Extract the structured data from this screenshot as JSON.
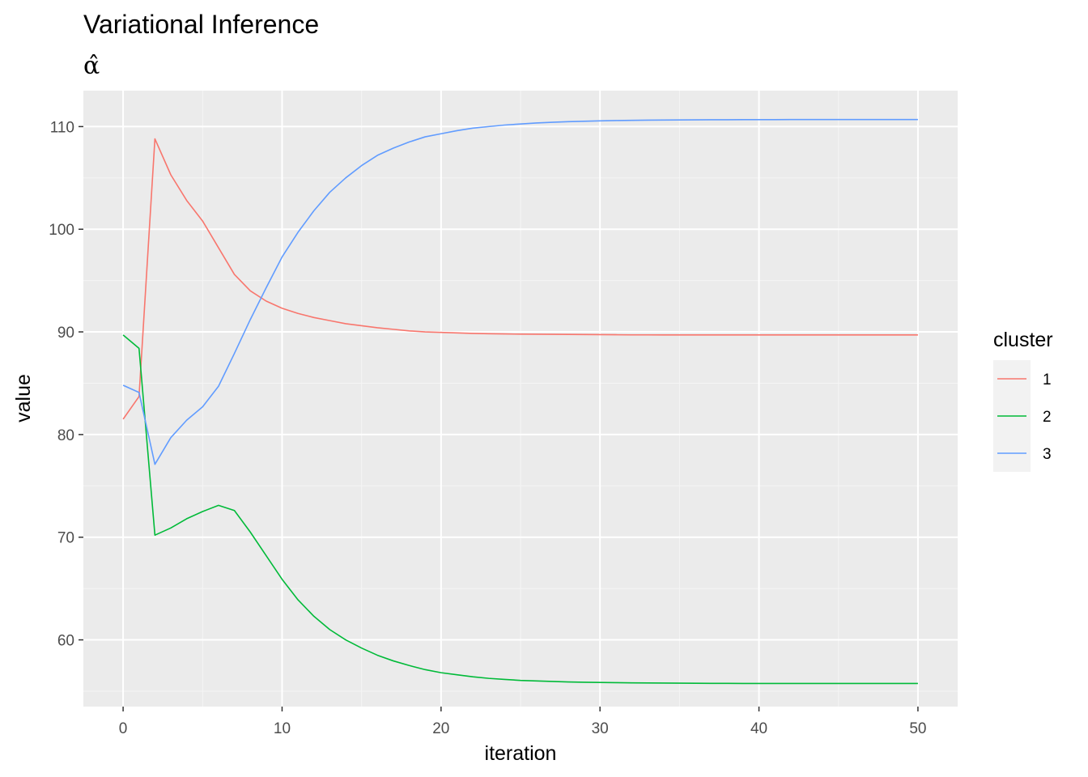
{
  "chart_data": {
    "type": "line",
    "title": "Variational Inference",
    "subtitle": "α̂",
    "xlabel": "iteration",
    "ylabel": "value",
    "xlim": [
      -2.5,
      52.5
    ],
    "ylim": [
      53.5,
      113.5
    ],
    "x_ticks": [
      0,
      10,
      20,
      30,
      40,
      50
    ],
    "x_tick_labels": [
      "0",
      "10",
      "20",
      "30",
      "40",
      "50"
    ],
    "y_ticks": [
      60,
      70,
      80,
      90,
      100,
      110
    ],
    "y_tick_labels": [
      "60",
      "70",
      "80",
      "90",
      "100",
      "110"
    ],
    "grid": true,
    "legend": {
      "title": "cluster",
      "position": "right",
      "entries": [
        "1",
        "2",
        "3"
      ]
    },
    "x": [
      0,
      1,
      2,
      3,
      4,
      5,
      6,
      7,
      8,
      9,
      10,
      11,
      12,
      13,
      14,
      15,
      16,
      17,
      18,
      19,
      20,
      21,
      22,
      23,
      24,
      25,
      26,
      27,
      28,
      29,
      30,
      31,
      32,
      33,
      34,
      35,
      36,
      37,
      38,
      39,
      40,
      41,
      42,
      43,
      44,
      45,
      46,
      47,
      48,
      49,
      50
    ],
    "series": [
      {
        "name": "1",
        "color": "#F8766D",
        "values": [
          81.5,
          83.7,
          108.8,
          105.3,
          102.8,
          100.8,
          98.2,
          95.6,
          94.0,
          93.0,
          92.3,
          91.8,
          91.4,
          91.1,
          90.8,
          90.6,
          90.4,
          90.25,
          90.1,
          90.0,
          89.95,
          89.9,
          89.85,
          89.82,
          89.8,
          89.78,
          89.77,
          89.76,
          89.75,
          89.74,
          89.73,
          89.72,
          89.71,
          89.71,
          89.7,
          89.7,
          89.7,
          89.7,
          89.7,
          89.7,
          89.7,
          89.7,
          89.7,
          89.7,
          89.7,
          89.7,
          89.7,
          89.7,
          89.7,
          89.7,
          89.7
        ]
      },
      {
        "name": "2",
        "color": "#00BA38",
        "values": [
          89.7,
          88.4,
          70.2,
          70.9,
          71.8,
          72.5,
          73.1,
          72.6,
          70.5,
          68.2,
          65.9,
          63.9,
          62.3,
          61.0,
          60.0,
          59.2,
          58.5,
          57.95,
          57.5,
          57.1,
          56.8,
          56.6,
          56.4,
          56.25,
          56.15,
          56.05,
          56.0,
          55.95,
          55.9,
          55.87,
          55.85,
          55.83,
          55.81,
          55.8,
          55.79,
          55.78,
          55.77,
          55.76,
          55.76,
          55.75,
          55.75,
          55.75,
          55.75,
          55.75,
          55.75,
          55.75,
          55.75,
          55.75,
          55.75,
          55.75,
          55.75
        ]
      },
      {
        "name": "3",
        "color": "#619CFF",
        "values": [
          84.8,
          84.1,
          77.1,
          79.7,
          81.4,
          82.7,
          84.7,
          87.9,
          91.2,
          94.3,
          97.3,
          99.7,
          101.8,
          103.6,
          105.0,
          106.2,
          107.2,
          107.9,
          108.5,
          109.0,
          109.3,
          109.6,
          109.85,
          110.0,
          110.15,
          110.25,
          110.35,
          110.42,
          110.48,
          110.52,
          110.56,
          110.59,
          110.61,
          110.63,
          110.64,
          110.65,
          110.66,
          110.67,
          110.67,
          110.68,
          110.68,
          110.68,
          110.69,
          110.69,
          110.69,
          110.69,
          110.69,
          110.69,
          110.69,
          110.69,
          110.69
        ]
      }
    ],
    "colors": {
      "panel_background": "#EBEBEB",
      "grid_major": "#FFFFFF",
      "grid_minor": "#F5F5F5",
      "legend_key_background": "#F2F2F2",
      "tick_color": "#333333"
    }
  }
}
